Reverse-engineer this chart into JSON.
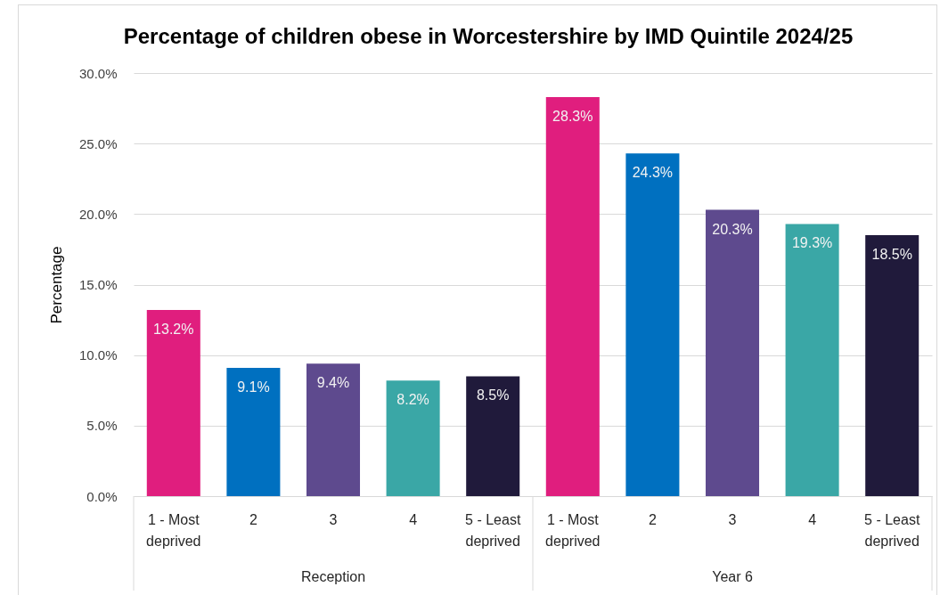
{
  "chart_data": {
    "type": "bar",
    "title": "Percentage of children obese in Worcestershire by IMD Quintile 2024/25",
    "ylabel": "Percentage",
    "categories": [
      "1 - Most deprived",
      "2",
      "3",
      "4",
      "5 - Least deprived",
      "1 - Most deprived",
      "2",
      "3",
      "4",
      "5 - Least deprived"
    ],
    "values": [
      13.2,
      9.1,
      9.4,
      8.2,
      8.5,
      28.3,
      24.3,
      20.3,
      19.3,
      18.5
    ],
    "colors": [
      "#e01e7e",
      "#0070c0",
      "#5e4a8e",
      "#3aa7a6",
      "#201a3b",
      "#e01e7e",
      "#0070c0",
      "#5e4a8e",
      "#3aa7a6",
      "#201a3b"
    ],
    "value_labels": [
      "13.2%",
      "9.1%",
      "9.4%",
      "8.2%",
      "8.5%",
      "28.3%",
      "24.3%",
      "20.3%",
      "19.3%",
      "18.5%"
    ],
    "ylim": [
      0,
      30
    ],
    "yticks": [
      {
        "value": 0,
        "label": "0.0%"
      },
      {
        "value": 5,
        "label": "5.0%"
      },
      {
        "value": 10,
        "label": "10.0%"
      },
      {
        "value": 15,
        "label": "15.0%"
      },
      {
        "value": 20,
        "label": "20.0%"
      },
      {
        "value": 25,
        "label": "25.0%"
      },
      {
        "value": 30,
        "label": "30.0%"
      }
    ],
    "grid": "y",
    "annotations": [
      "Reception",
      "Year 6"
    ]
  }
}
